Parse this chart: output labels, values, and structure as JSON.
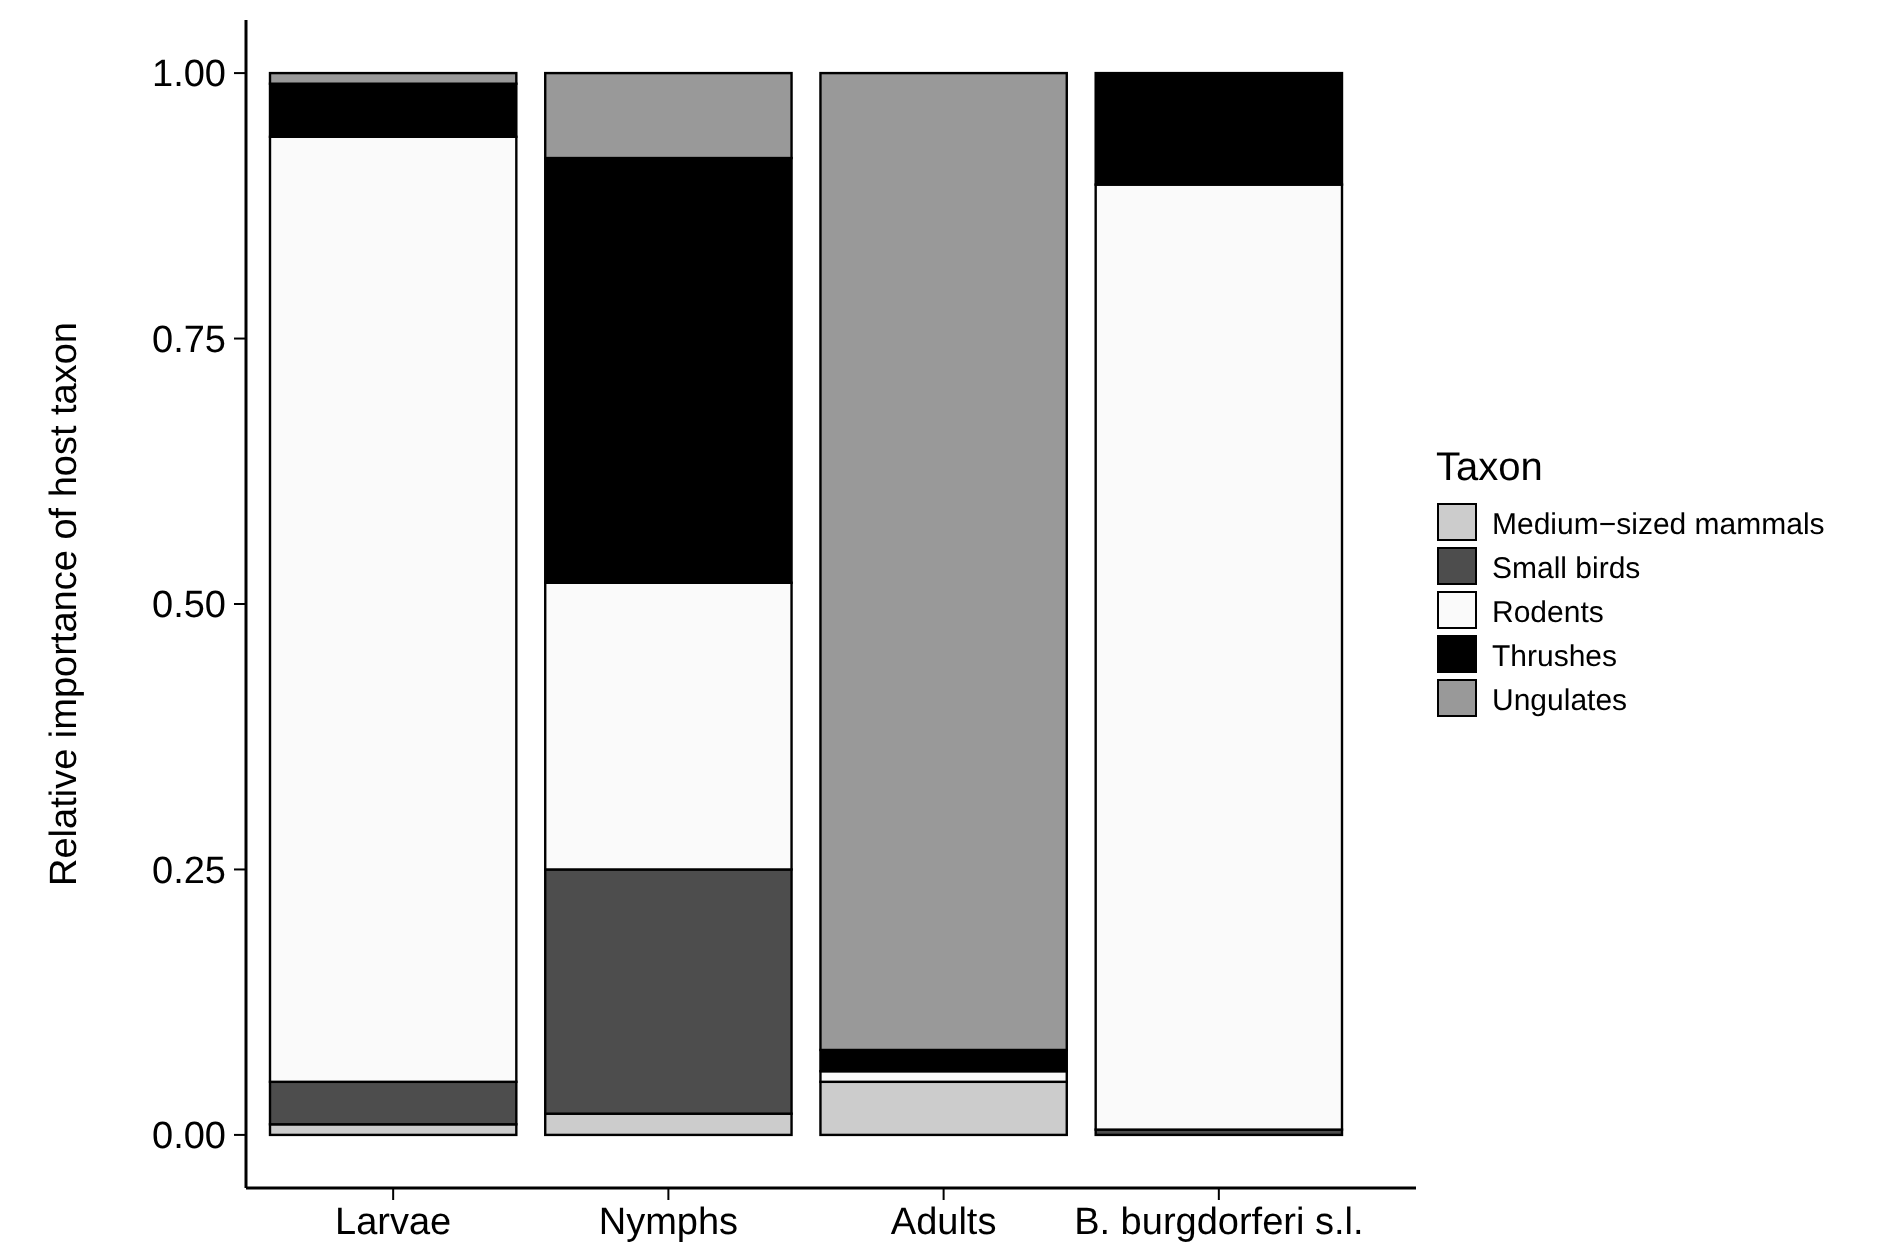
{
  "chart_data": {
    "type": "bar",
    "stacked": true,
    "ylabel": "Relative importance of host taxon",
    "legend_title": "Taxon",
    "legend": "right",
    "grid": false,
    "categories": [
      "Larvae",
      "Nymphs",
      "Adults",
      "B. burgdorferi s.l."
    ],
    "ylim": [
      -0.05,
      1.05
    ],
    "yticks": [
      {
        "value": 0,
        "label": "0.00"
      },
      {
        "value": 0.25,
        "label": "0.25"
      },
      {
        "value": 0.5,
        "label": "0.50"
      },
      {
        "value": 0.75,
        "label": "0.75"
      },
      {
        "value": 1,
        "label": "1.00"
      }
    ],
    "series": [
      {
        "name": "Medium−sized mammals",
        "color": "#cccccc",
        "values": [
          0.01,
          0.02,
          0.05,
          0
        ]
      },
      {
        "name": "Small birds",
        "color": "#4d4d4d",
        "values": [
          0.04,
          0.23,
          0,
          0.005
        ]
      },
      {
        "name": "Rodents",
        "color": "#fafafa",
        "values": [
          0.89,
          0.27,
          0.01,
          0.89
        ]
      },
      {
        "name": "Thrushes",
        "color": "#000000",
        "values": [
          0.05,
          0.4,
          0.02,
          0.105
        ]
      },
      {
        "name": "Ungulates",
        "color": "#999999",
        "values": [
          0.01,
          0.08,
          0.92,
          0
        ]
      }
    ]
  }
}
